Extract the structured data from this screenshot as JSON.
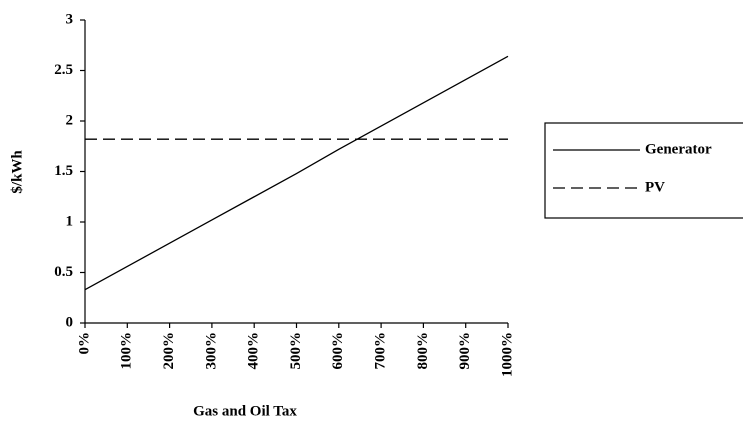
{
  "chart_data": {
    "type": "line",
    "x_label": "Gas and Oil Tax",
    "y_label": "$/kWh",
    "categories": [
      "0%",
      "100%",
      "200%",
      "300%",
      "400%",
      "500%",
      "600%",
      "700%",
      "800%",
      "900%",
      "1000%"
    ],
    "series": [
      {
        "name": "Generator",
        "color": "#000000",
        "line_style": "solid",
        "values": [
          0.33,
          0.56,
          0.79,
          1.02,
          1.25,
          1.48,
          1.72,
          1.95,
          2.18,
          2.41,
          2.64
        ]
      },
      {
        "name": "PV",
        "color": "#000000",
        "line_style": "dashed",
        "values": [
          1.82,
          1.82,
          1.82,
          1.82,
          1.82,
          1.82,
          1.82,
          1.82,
          1.82,
          1.82,
          1.82
        ]
      }
    ],
    "ylim": [
      0,
      3
    ],
    "yticks": [
      0,
      0.5,
      1,
      1.5,
      2,
      2.5,
      3
    ],
    "grid": false,
    "legend": "right"
  }
}
